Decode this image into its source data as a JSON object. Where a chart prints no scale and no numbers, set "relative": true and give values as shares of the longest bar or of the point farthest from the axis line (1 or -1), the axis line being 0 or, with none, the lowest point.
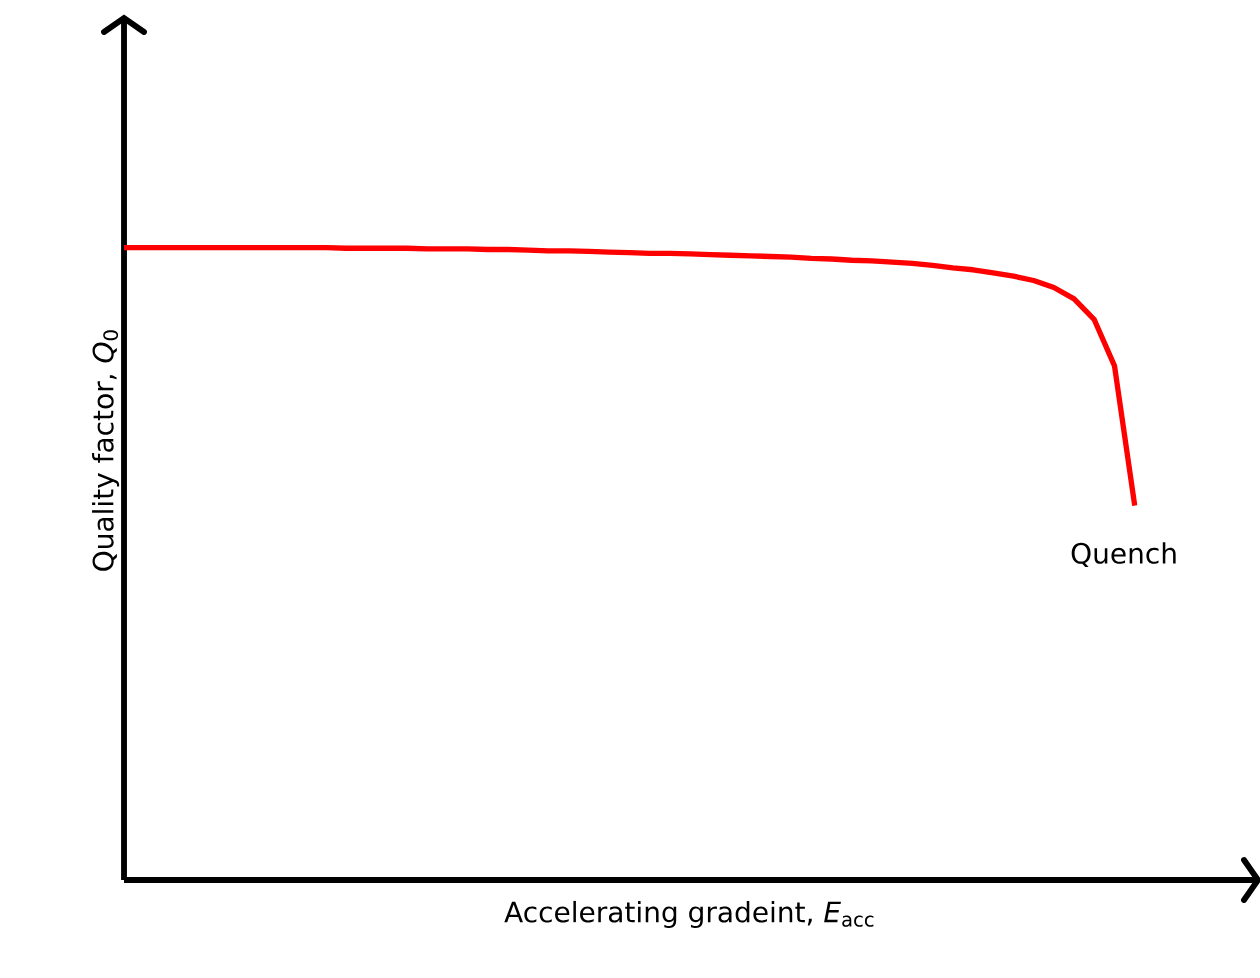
{
  "chart_data": {
    "type": "line",
    "relative": true,
    "xlabel": "Accelerating gradeint, *E*$_{acc}$",
    "ylabel": "Quality factor, *Q*$_{0}$",
    "categories": [
      null,
      null,
      null,
      null,
      null,
      null,
      null,
      null,
      null,
      null,
      null,
      null,
      null,
      null,
      null,
      null,
      null,
      null,
      null,
      null,
      null,
      null,
      null,
      null,
      null,
      null,
      null,
      null,
      null,
      null,
      null,
      null,
      null,
      null,
      null,
      null,
      null,
      null,
      null,
      null,
      null,
      null,
      null,
      null,
      null,
      null,
      null,
      null,
      null,
      null,
      null
    ],
    "series": [
      {
        "color": "#ff0000",
        "values": [
          1,
          1,
          1,
          1,
          1,
          1,
          1,
          1,
          1,
          1,
          1,
          0.999,
          0.999,
          0.999,
          0.999,
          0.998,
          0.998,
          0.998,
          0.997,
          0.997,
          0.996,
          0.995,
          0.995,
          0.994,
          0.993,
          0.992,
          0.991,
          0.991,
          0.99,
          0.989,
          0.988,
          0.987,
          0.986,
          0.985,
          0.983,
          0.982,
          0.98,
          0.979,
          0.977,
          0.975,
          0.972,
          0.968,
          0.965,
          0.96,
          0.955,
          0.948,
          0.937,
          0.919,
          0.886,
          0.813,
          0.592
        ]
      }
    ],
    "annotations": [
      "Quench"
    ]
  }
}
